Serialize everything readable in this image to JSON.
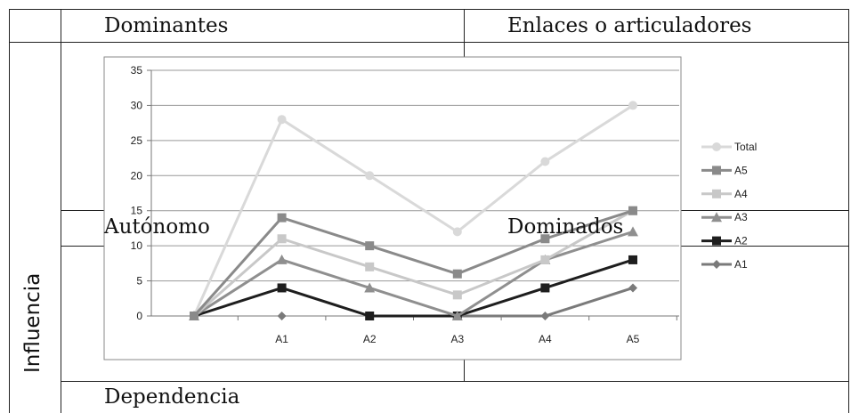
{
  "quadrants": {
    "top_left": "Dominantes",
    "top_right": "Enlaces o articuladores",
    "mid_left": "Autónomo",
    "mid_right": "Dominados",
    "bottom_left": "Dependencia",
    "side": "Influencia"
  },
  "colors": {
    "Total": "#d9d9d9",
    "A5": "#8a8a8a",
    "A4": "#c8c8c8",
    "A3": "#8f8f8f",
    "A2": "#1e1e1e",
    "A1": "#7a7a7a"
  },
  "chart_data": {
    "type": "line",
    "categories": [
      "",
      "A1",
      "A2",
      "A3",
      "A4",
      "A5"
    ],
    "ylim": [
      0,
      35
    ],
    "yticks": [
      0,
      5,
      10,
      15,
      20,
      25,
      30,
      35
    ],
    "grid": true,
    "legend_position": "right",
    "series": [
      {
        "name": "Total",
        "marker": "circle",
        "values": [
          0,
          28,
          20,
          12,
          22,
          30
        ]
      },
      {
        "name": "A5",
        "marker": "square",
        "values": [
          0,
          14,
          10,
          6,
          11,
          15
        ]
      },
      {
        "name": "A4",
        "marker": "square",
        "values": [
          0,
          11,
          7,
          3,
          8,
          15
        ]
      },
      {
        "name": "A3",
        "marker": "triangle",
        "values": [
          0,
          8,
          4,
          0,
          8,
          12
        ]
      },
      {
        "name": "A2",
        "marker": "square",
        "values": [
          0,
          4,
          0,
          0,
          4,
          8
        ]
      },
      {
        "name": "A1",
        "marker": "diamond",
        "values": [
          null,
          0,
          null,
          0,
          0,
          4
        ]
      }
    ]
  }
}
